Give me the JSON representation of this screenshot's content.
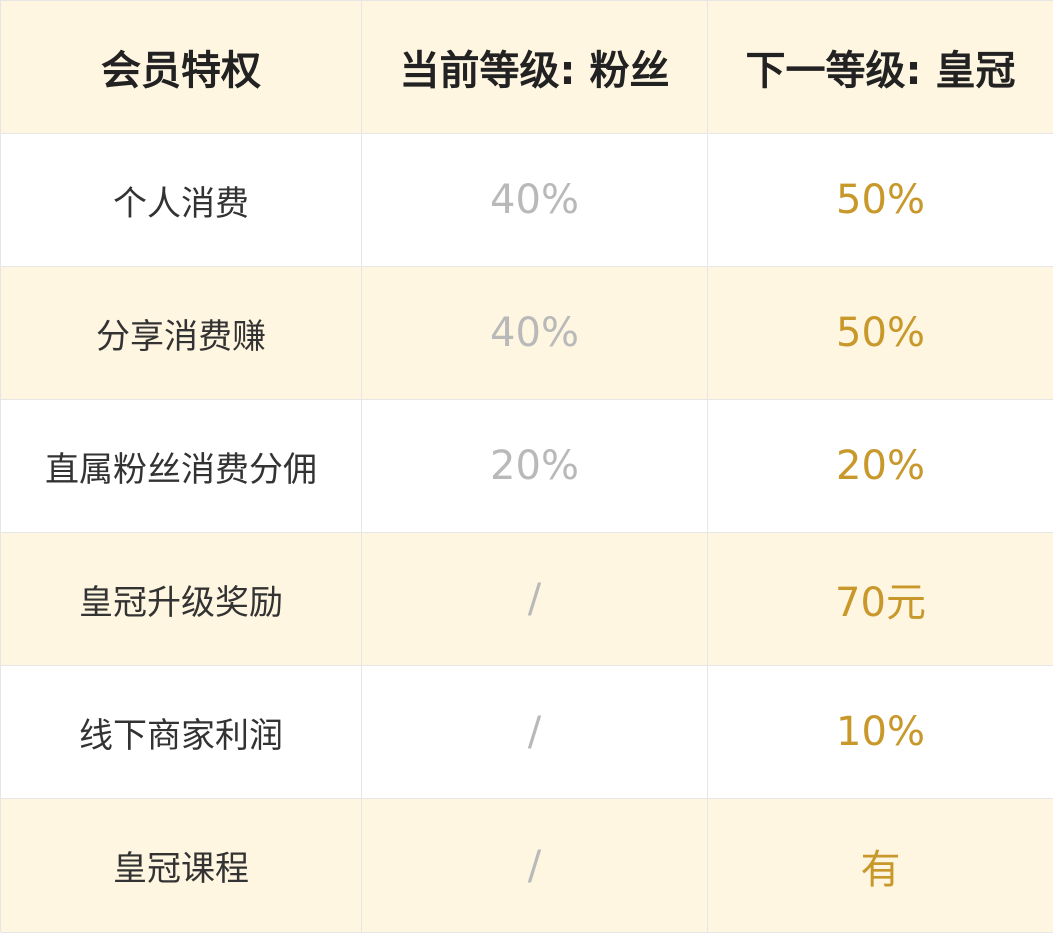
{
  "header": {
    "col1": "会员特权",
    "col2": "当前等级: 粉丝",
    "col3": "下一等级: 皇冠"
  },
  "rows": [
    {
      "label": "个人消费",
      "current": "40%",
      "next": "50%"
    },
    {
      "label": "分享消费赚",
      "current": "40%",
      "next": "50%"
    },
    {
      "label": "直属粉丝消费分佣",
      "current": "20%",
      "next": "20%"
    },
    {
      "label": "皇冠升级奖励",
      "current": "/",
      "next": "70元"
    },
    {
      "label": "线下商家利润",
      "current": "/",
      "next": "10%"
    },
    {
      "label": "皇冠课程",
      "current": "/",
      "next": "有"
    }
  ],
  "colors": {
    "cream_row": "#fff6e2",
    "current_value": "#b9b9b9",
    "next_value": "#c9982b",
    "border": "#e6e6e6"
  }
}
